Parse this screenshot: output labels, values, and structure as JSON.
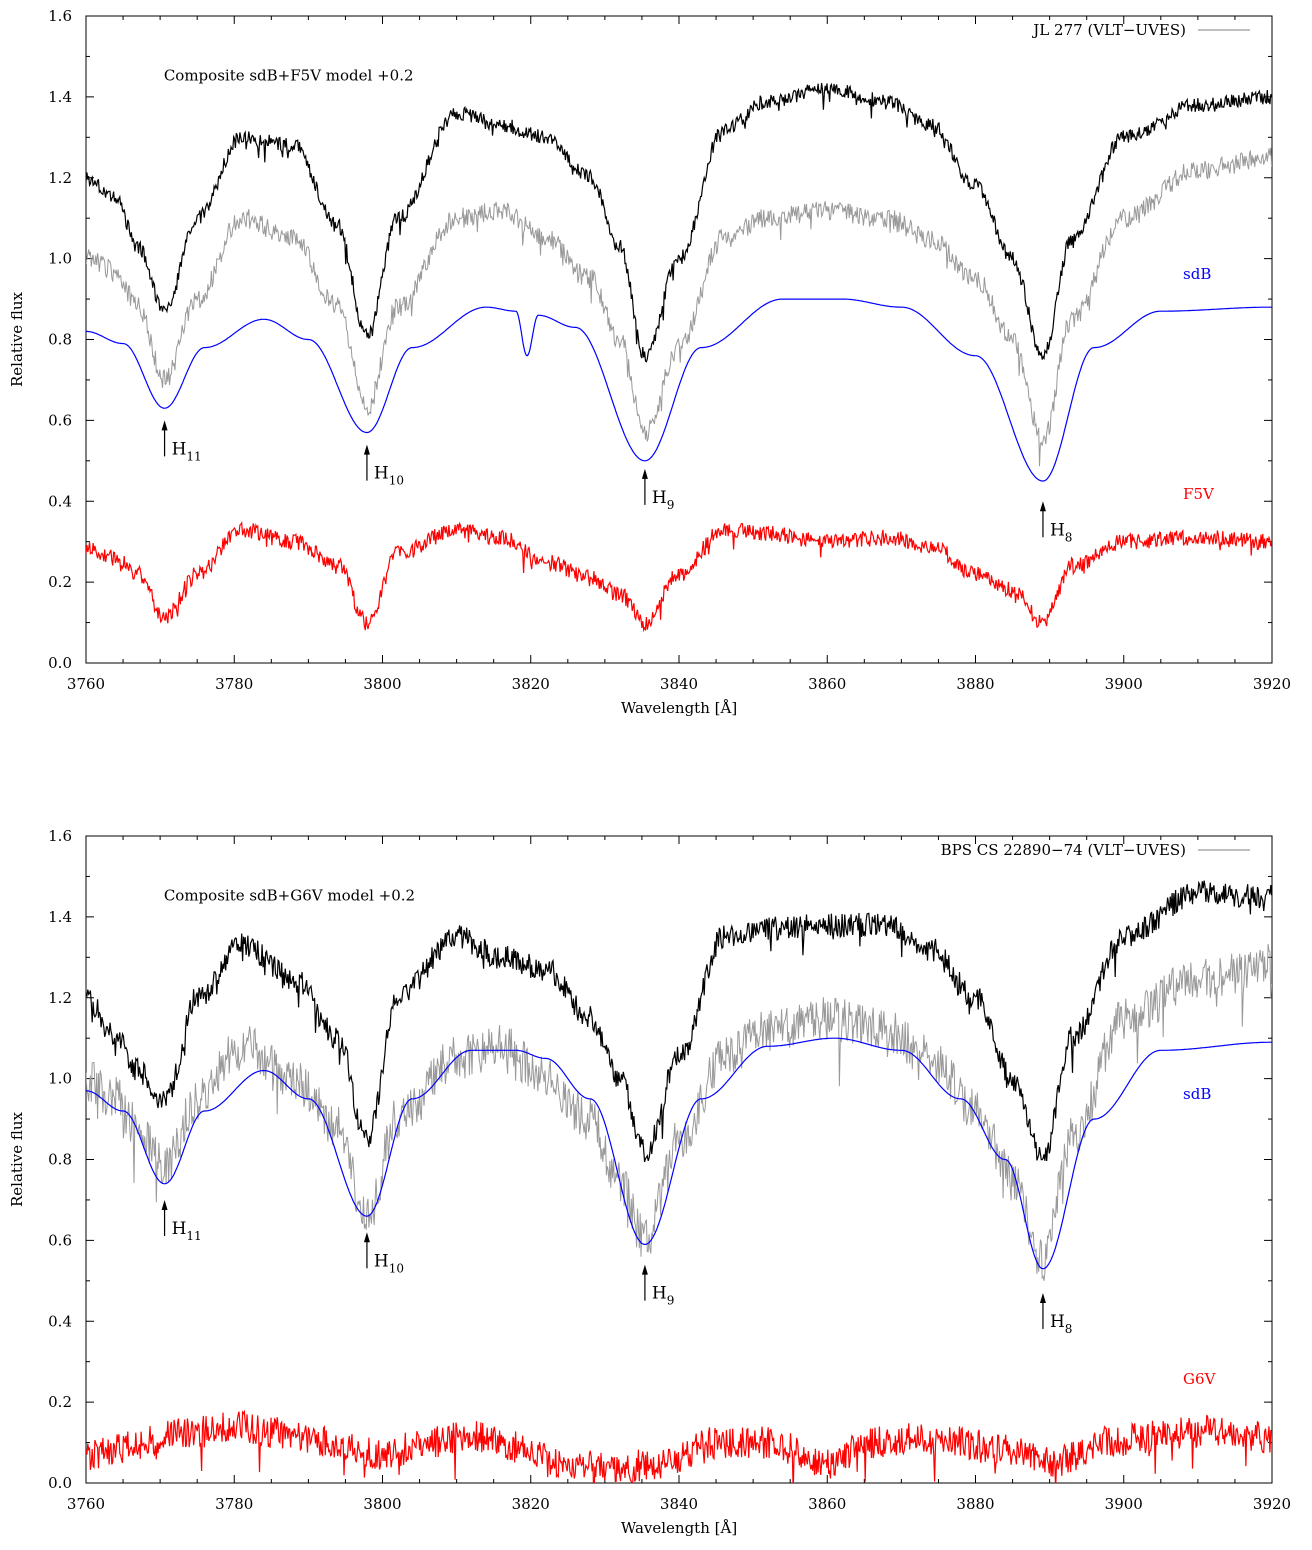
{
  "chart_data": [
    {
      "type": "line",
      "xlabel": "Wavelength [Å]",
      "ylabel": "Relative flux",
      "xlim": [
        3760,
        3920
      ],
      "ylim": [
        0.0,
        1.6
      ],
      "xticks": [
        "3760",
        "3780",
        "3800",
        "3820",
        "3840",
        "3860",
        "3880",
        "3900",
        "3920"
      ],
      "yticks": [
        "0.0",
        "0.2",
        "0.4",
        "0.6",
        "0.8",
        "1.0",
        "1.2",
        "1.4",
        "1.6"
      ],
      "legend": {
        "label": "JL 277 (VLT−UVES)",
        "color": "#999999",
        "placement": "top-right"
      },
      "annotation": "Composite sdB+F5V model +0.2",
      "component_labels": [
        {
          "text": "sdB",
          "color": "#0000ff",
          "x": 3908,
          "y": 0.95
        },
        {
          "text": "F5V",
          "color": "#ff0000",
          "x": 3908,
          "y": 0.405
        }
      ],
      "lines": [
        {
          "base": "H",
          "sub": "11",
          "x": 3770.6,
          "y": 0.6
        },
        {
          "base": "H",
          "sub": "10",
          "x": 3797.9,
          "y": 0.54
        },
        {
          "base": "H",
          "sub": "9",
          "x": 3835.4,
          "y": 0.48
        },
        {
          "base": "H",
          "sub": "8",
          "x": 3889.1,
          "y": 0.4
        }
      ],
      "series": [
        {
          "role": "composite model",
          "color": "#000000",
          "x": [
            3760,
            3764,
            3767,
            3770.6,
            3775,
            3781,
            3788,
            3794,
            3797.9,
            3802,
            3810,
            3816,
            3822,
            3828,
            3832,
            3835.4,
            3840,
            3846,
            3852,
            3860,
            3868,
            3874,
            3880,
            3885,
            3889.1,
            3893,
            3900,
            3910,
            3920
          ],
          "y": [
            1.2,
            1.15,
            1.03,
            0.87,
            1.1,
            1.3,
            1.28,
            1.08,
            0.81,
            1.1,
            1.36,
            1.33,
            1.3,
            1.2,
            1.03,
            0.76,
            1.0,
            1.32,
            1.39,
            1.42,
            1.39,
            1.33,
            1.18,
            1.0,
            0.76,
            1.05,
            1.3,
            1.38,
            1.4
          ]
        },
        {
          "role": "observed (JL 277)",
          "color": "#999999",
          "x": [
            3760,
            3764,
            3767,
            3770.6,
            3775,
            3781,
            3788,
            3794,
            3797.9,
            3802,
            3810,
            3816,
            3822,
            3828,
            3832,
            3835.4,
            3840,
            3846,
            3852,
            3860,
            3868,
            3874,
            3880,
            3885,
            3889.1,
            3893,
            3900,
            3910,
            3920
          ],
          "y": [
            1.0,
            0.97,
            0.88,
            0.7,
            0.9,
            1.1,
            1.05,
            0.88,
            0.63,
            0.88,
            1.1,
            1.12,
            1.05,
            0.95,
            0.8,
            0.57,
            0.78,
            1.05,
            1.1,
            1.12,
            1.1,
            1.05,
            0.95,
            0.8,
            0.55,
            0.85,
            1.1,
            1.22,
            1.25
          ]
        },
        {
          "role": "sdB model",
          "color": "#0000ff",
          "x": [
            3760,
            3765,
            3770.6,
            3776,
            3784,
            3790,
            3797.9,
            3804,
            3814,
            3818,
            3819.5,
            3821,
            3826,
            3835.4,
            3843,
            3854,
            3862,
            3870,
            3880,
            3889.1,
            3896,
            3905,
            3920
          ],
          "y": [
            0.82,
            0.79,
            0.63,
            0.78,
            0.85,
            0.8,
            0.57,
            0.78,
            0.88,
            0.87,
            0.76,
            0.86,
            0.83,
            0.5,
            0.78,
            0.9,
            0.9,
            0.88,
            0.76,
            0.45,
            0.78,
            0.87,
            0.88
          ]
        },
        {
          "role": "F5V model",
          "color": "#ff0000",
          "x": [
            3760,
            3764,
            3767,
            3770.6,
            3775,
            3781,
            3788,
            3794,
            3797.9,
            3802,
            3810,
            3816,
            3822,
            3828,
            3832,
            3835.4,
            3840,
            3846,
            3852,
            3860,
            3868,
            3874,
            3880,
            3885,
            3889.1,
            3893,
            3900,
            3910,
            3920
          ],
          "y": [
            0.28,
            0.26,
            0.22,
            0.11,
            0.22,
            0.33,
            0.3,
            0.24,
            0.1,
            0.27,
            0.33,
            0.31,
            0.25,
            0.21,
            0.17,
            0.1,
            0.22,
            0.33,
            0.32,
            0.3,
            0.31,
            0.29,
            0.22,
            0.18,
            0.1,
            0.24,
            0.3,
            0.31,
            0.3
          ]
        }
      ]
    },
    {
      "type": "line",
      "xlabel": "Wavelength [Å]",
      "ylabel": "Relative flux",
      "xlim": [
        3760,
        3920
      ],
      "ylim": [
        0.0,
        1.6
      ],
      "xticks": [
        "3760",
        "3780",
        "3800",
        "3820",
        "3840",
        "3860",
        "3880",
        "3900",
        "3920"
      ],
      "yticks": [
        "0.0",
        "0.2",
        "0.4",
        "0.6",
        "0.8",
        "1.0",
        "1.2",
        "1.4",
        "1.6"
      ],
      "legend": {
        "label": "BPS CS 22890−74 (VLT−UVES)",
        "color": "#999999",
        "placement": "top-right"
      },
      "annotation": "Composite sdB+G6V model +0.2",
      "component_labels": [
        {
          "text": "sdB",
          "color": "#0000ff",
          "x": 3908,
          "y": 0.95
        },
        {
          "text": "G6V",
          "color": "#ff0000",
          "x": 3908,
          "y": 0.245
        }
      ],
      "lines": [
        {
          "base": "H",
          "sub": "11",
          "x": 3770.6,
          "y": 0.7
        },
        {
          "base": "H",
          "sub": "10",
          "x": 3797.9,
          "y": 0.62
        },
        {
          "base": "H",
          "sub": "9",
          "x": 3835.4,
          "y": 0.54
        },
        {
          "base": "H",
          "sub": "8",
          "x": 3889.1,
          "y": 0.47
        }
      ],
      "series": [
        {
          "role": "composite model",
          "color": "#000000",
          "x": [
            3760,
            3764,
            3767,
            3770.6,
            3775,
            3781,
            3788,
            3794,
            3797.9,
            3802,
            3810,
            3816,
            3822,
            3828,
            3832,
            3835.4,
            3840,
            3846,
            3852,
            3860,
            3868,
            3874,
            3880,
            3885,
            3889.1,
            3893,
            3900,
            3910,
            3920
          ],
          "y": [
            1.2,
            1.1,
            1.02,
            0.94,
            1.2,
            1.33,
            1.25,
            1.1,
            0.85,
            1.2,
            1.35,
            1.3,
            1.27,
            1.15,
            1.0,
            0.82,
            1.05,
            1.35,
            1.37,
            1.38,
            1.38,
            1.32,
            1.2,
            1.0,
            0.8,
            1.1,
            1.35,
            1.46,
            1.45
          ]
        },
        {
          "role": "observed (BPS CS 22890−74)",
          "color": "#999999",
          "x": [
            3760,
            3764,
            3767,
            3770.6,
            3775,
            3781,
            3788,
            3794,
            3797.9,
            3802,
            3810,
            3816,
            3822,
            3828,
            3832,
            3835.4,
            3840,
            3846,
            3852,
            3860,
            3868,
            3874,
            3880,
            3885,
            3889.1,
            3893,
            3900,
            3910,
            3920
          ],
          "y": [
            1.0,
            0.95,
            0.88,
            0.78,
            0.95,
            1.08,
            1.0,
            0.88,
            0.65,
            0.9,
            1.05,
            1.08,
            1.0,
            0.9,
            0.75,
            0.6,
            0.85,
            1.05,
            1.12,
            1.15,
            1.12,
            1.05,
            0.92,
            0.75,
            0.55,
            0.85,
            1.15,
            1.25,
            1.28
          ]
        },
        {
          "role": "sdB model",
          "color": "#0000ff",
          "x": [
            3760,
            3765,
            3770.6,
            3776,
            3784,
            3790,
            3797.9,
            3804,
            3812,
            3818,
            3822,
            3828,
            3835.4,
            3843,
            3852,
            3861,
            3870,
            3878,
            3884,
            3889.1,
            3896,
            3905,
            3920
          ],
          "y": [
            0.97,
            0.92,
            0.74,
            0.92,
            1.02,
            0.95,
            0.66,
            0.95,
            1.07,
            1.07,
            1.05,
            0.95,
            0.59,
            0.95,
            1.08,
            1.1,
            1.07,
            0.95,
            0.8,
            0.53,
            0.9,
            1.07,
            1.09
          ]
        },
        {
          "role": "G6V model",
          "color": "#ff0000",
          "x": [
            3760,
            3766,
            3772,
            3780,
            3788,
            3795,
            3800,
            3806,
            3812,
            3818,
            3825,
            3832,
            3838,
            3845,
            3852,
            3860,
            3866,
            3872,
            3878,
            3884,
            3890,
            3898,
            3906,
            3912,
            3920
          ],
          "y": [
            0.07,
            0.09,
            0.12,
            0.14,
            0.12,
            0.09,
            0.07,
            0.1,
            0.12,
            0.09,
            0.05,
            0.04,
            0.05,
            0.1,
            0.1,
            0.05,
            0.1,
            0.11,
            0.1,
            0.08,
            0.05,
            0.1,
            0.12,
            0.13,
            0.11
          ]
        }
      ]
    }
  ]
}
